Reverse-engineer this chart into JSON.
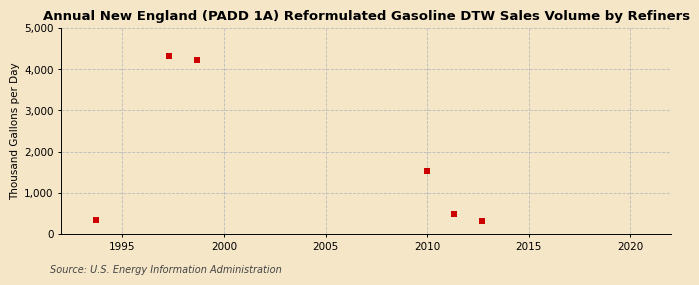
{
  "title": "Annual New England (PADD 1A) Reformulated Gasoline DTW Sales Volume by Refiners",
  "ylabel": "Thousand Gallons per Day",
  "source": "Source: U.S. Energy Information Administration",
  "background_color": "#f5e6c8",
  "plot_background_color": "#f5e6c8",
  "data_x": [
    1993.7,
    1997.3,
    1998.7,
    2010,
    2011.3,
    2012.7
  ],
  "data_y": [
    350,
    4320,
    4220,
    1540,
    480,
    320
  ],
  "marker_color": "#cc0000",
  "marker_size": 4,
  "xlim": [
    1992,
    2022
  ],
  "ylim": [
    0,
    5000
  ],
  "xticks": [
    1995,
    2000,
    2005,
    2010,
    2015,
    2020
  ],
  "yticks": [
    0,
    1000,
    2000,
    3000,
    4000,
    5000
  ],
  "ytick_labels": [
    "0",
    "1,000",
    "2,000",
    "3,000",
    "4,000",
    "5,000"
  ],
  "grid_color": "#bbbbbb",
  "grid_linestyle": "--",
  "title_fontsize": 9.5,
  "label_fontsize": 7.5,
  "tick_fontsize": 7.5,
  "source_fontsize": 7
}
